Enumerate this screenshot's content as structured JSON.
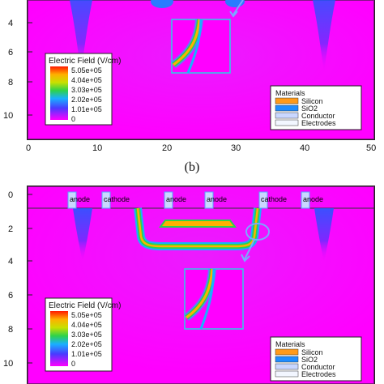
{
  "panel_top": {
    "y_ticks": [
      "4",
      "6",
      "8",
      "10"
    ],
    "x_ticks": [
      "0",
      "10",
      "20",
      "30",
      "40",
      "50"
    ]
  },
  "caption": "(b)",
  "panel_bottom": {
    "y_ticks": [
      "0",
      "2",
      "4",
      "6",
      "8",
      "10"
    ],
    "electrodes": [
      "anode",
      "cathode",
      "anode",
      "anode",
      "cathode",
      "anode"
    ]
  },
  "legend": {
    "title": "Electric Field (V/cm)",
    "values": [
      "5.05e+05",
      "4.04e+05",
      "3.03e+05",
      "2.02e+05",
      "1.01e+05",
      "0"
    ],
    "colors": [
      "#ff3a00",
      "#ffb000",
      "#2ed24a",
      "#19b0ff",
      "#4a3aff",
      "#ff00ff"
    ]
  },
  "materials": {
    "title": "Materials",
    "items": [
      {
        "label": "Silicon",
        "color": "#ff9a1a"
      },
      {
        "label": "SiO2",
        "color": "#1e8cff"
      },
      {
        "label": "Conductor",
        "color": "#c9d7ff"
      },
      {
        "label": "Electrodes",
        "color": "#f2f6ff"
      }
    ]
  },
  "colors": {
    "field_bg": "#ff00ff",
    "frame": "#222222",
    "inset_border": "#2bd0e6",
    "arrow": "#7aa8ff"
  }
}
